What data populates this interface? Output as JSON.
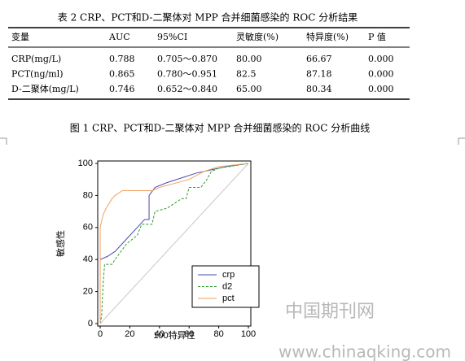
{
  "table": {
    "caption": "表 2  CRP、PCT和D-二聚体对 MPP 合并细菌感染的 ROC 分析结果",
    "header": [
      "变量",
      "AUC",
      "95%CI",
      "灵敏度(%)",
      "特异度(%)",
      "P 值"
    ],
    "rows": [
      [
        "CRP(mg/L)",
        "0.788",
        "0.705～0.870",
        "80.00",
        "66.67",
        "0.000"
      ],
      [
        "PCT(ng/ml)",
        "0.865",
        "0.780～0.951",
        "82.5",
        "87.18",
        "0.000"
      ],
      [
        "D-二聚体(mg/L)",
        "0.746",
        "0.652～0.840",
        "65.00",
        "80.34",
        "0.000"
      ]
    ]
  },
  "figure_caption": "图 1 CRP、PCT和D-二聚体对 MPP 合并细菌感染的 ROC 分析曲线",
  "chart_data": {
    "type": "line",
    "xlabel": "100特异性",
    "ylabel": "敏感性",
    "xlim": [
      0,
      100
    ],
    "ylim": [
      0,
      100
    ],
    "xticks": [
      0,
      20,
      40,
      60,
      80,
      100
    ],
    "yticks": [
      0,
      20,
      40,
      60,
      80,
      100
    ],
    "legend": "lower right",
    "series": [
      {
        "name": "crp",
        "color": "#4b4bb0",
        "dash": false,
        "x": [
          0,
          5,
          10,
          15,
          20,
          25,
          30,
          33,
          33,
          37,
          45,
          55,
          65,
          75,
          85,
          100
        ],
        "values": [
          40,
          42,
          45,
          50,
          55,
          60,
          65,
          65,
          80,
          85,
          88,
          91,
          94,
          96,
          98,
          100
        ]
      },
      {
        "name": "d2",
        "color": "#2a9a2a",
        "dash": true,
        "x": [
          0,
          1,
          2,
          3,
          8,
          10,
          18,
          25,
          28,
          35,
          37,
          45,
          55,
          58,
          60,
          68,
          72,
          75,
          80,
          100
        ],
        "values": [
          0,
          5,
          25,
          37,
          37,
          40,
          50,
          55,
          62,
          62,
          70,
          72,
          78,
          78,
          85,
          85,
          90,
          95,
          97,
          100
        ]
      },
      {
        "name": "pct",
        "color": "#f0a060",
        "dash": false,
        "x": [
          0,
          0,
          2,
          4,
          6,
          8,
          10,
          15,
          20,
          35,
          40,
          60,
          70,
          80,
          100
        ],
        "values": [
          0,
          60,
          68,
          72,
          75,
          78,
          80,
          83,
          83,
          83,
          85,
          90,
          95,
          98,
          100
        ]
      }
    ]
  },
  "watermark": [
    "中国期刊网",
    "www.chinaqking.com"
  ]
}
